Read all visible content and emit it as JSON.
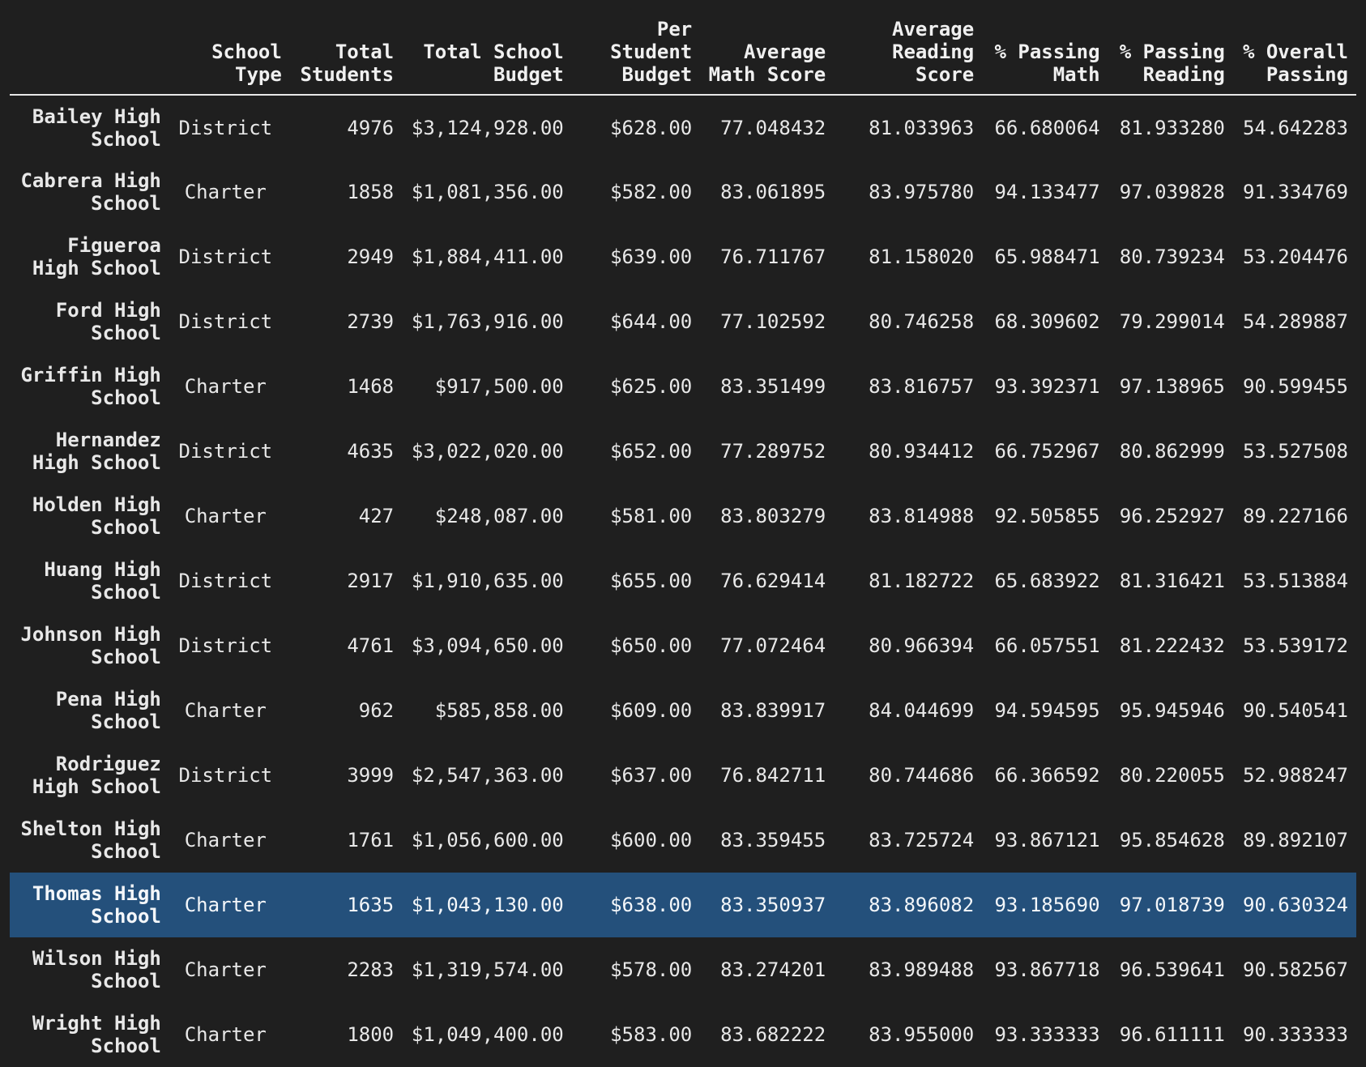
{
  "table": {
    "columns": [
      "",
      "School Type",
      "Total Students",
      "Total School Budget",
      "Per Student Budget",
      "Average Math Score",
      "Average Reading Score",
      "% Passing Math",
      "% Passing Reading",
      "% Overall Passing"
    ],
    "selected_row": "Thomas High School",
    "rows": [
      [
        "Bailey High School",
        "District",
        "4976",
        "$3,124,928.00",
        "$628.00",
        "77.048432",
        "81.033963",
        "66.680064",
        "81.933280",
        "54.642283"
      ],
      [
        "Cabrera High School",
        "Charter",
        "1858",
        "$1,081,356.00",
        "$582.00",
        "83.061895",
        "83.975780",
        "94.133477",
        "97.039828",
        "91.334769"
      ],
      [
        "Figueroa High School",
        "District",
        "2949",
        "$1,884,411.00",
        "$639.00",
        "76.711767",
        "81.158020",
        "65.988471",
        "80.739234",
        "53.204476"
      ],
      [
        "Ford High School",
        "District",
        "2739",
        "$1,763,916.00",
        "$644.00",
        "77.102592",
        "80.746258",
        "68.309602",
        "79.299014",
        "54.289887"
      ],
      [
        "Griffin High School",
        "Charter",
        "1468",
        "$917,500.00",
        "$625.00",
        "83.351499",
        "83.816757",
        "93.392371",
        "97.138965",
        "90.599455"
      ],
      [
        "Hernandez High School",
        "District",
        "4635",
        "$3,022,020.00",
        "$652.00",
        "77.289752",
        "80.934412",
        "66.752967",
        "80.862999",
        "53.527508"
      ],
      [
        "Holden High School",
        "Charter",
        "427",
        "$248,087.00",
        "$581.00",
        "83.803279",
        "83.814988",
        "92.505855",
        "96.252927",
        "89.227166"
      ],
      [
        "Huang High School",
        "District",
        "2917",
        "$1,910,635.00",
        "$655.00",
        "76.629414",
        "81.182722",
        "65.683922",
        "81.316421",
        "53.513884"
      ],
      [
        "Johnson High School",
        "District",
        "4761",
        "$3,094,650.00",
        "$650.00",
        "77.072464",
        "80.966394",
        "66.057551",
        "81.222432",
        "53.539172"
      ],
      [
        "Pena High School",
        "Charter",
        "962",
        "$585,858.00",
        "$609.00",
        "83.839917",
        "84.044699",
        "94.594595",
        "95.945946",
        "90.540541"
      ],
      [
        "Rodriguez High School",
        "District",
        "3999",
        "$2,547,363.00",
        "$637.00",
        "76.842711",
        "80.744686",
        "66.366592",
        "80.220055",
        "52.988247"
      ],
      [
        "Shelton High School",
        "Charter",
        "1761",
        "$1,056,600.00",
        "$600.00",
        "83.359455",
        "83.725724",
        "93.867121",
        "95.854628",
        "89.892107"
      ],
      [
        "Thomas High School",
        "Charter",
        "1635",
        "$1,043,130.00",
        "$638.00",
        "83.350937",
        "83.896082",
        "93.185690",
        "97.018739",
        "90.630324"
      ],
      [
        "Wilson High School",
        "Charter",
        "2283",
        "$1,319,574.00",
        "$578.00",
        "83.274201",
        "83.989488",
        "93.867718",
        "96.539641",
        "90.582567"
      ],
      [
        "Wright High School",
        "Charter",
        "1800",
        "$1,049,400.00",
        "$583.00",
        "83.682222",
        "83.955000",
        "93.333333",
        "96.611111",
        "90.333333"
      ]
    ]
  }
}
